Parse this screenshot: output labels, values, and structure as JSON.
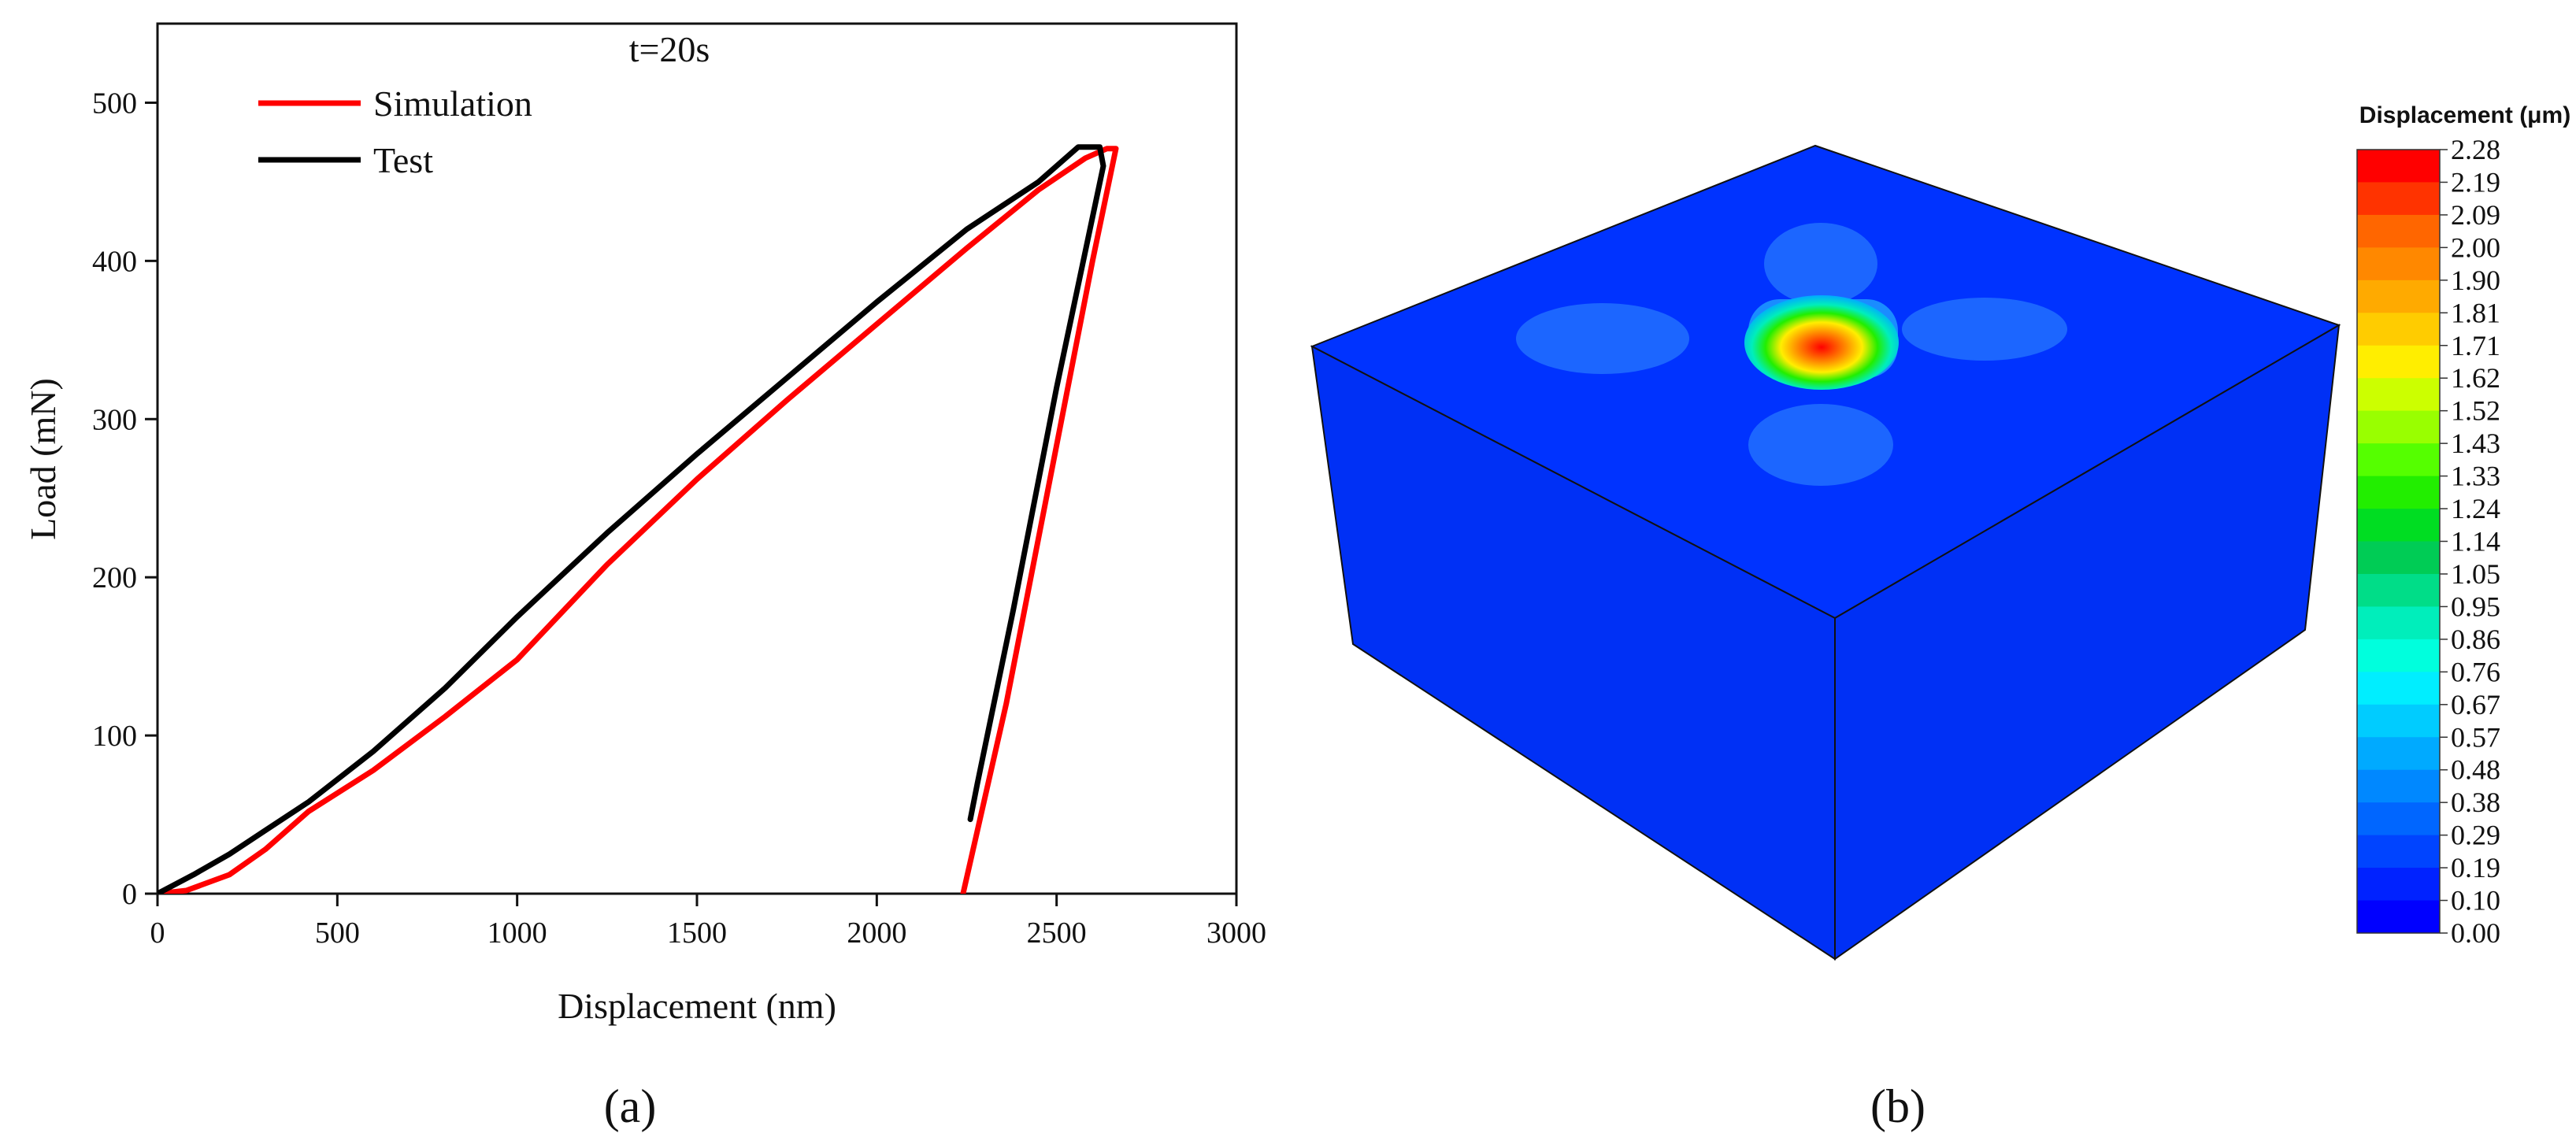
{
  "chart_data": [
    {
      "type": "line",
      "title": "t=20s",
      "xlabel": "Displacement (nm)",
      "ylabel": "Load (mN)",
      "xlim": [
        0,
        3000
      ],
      "ylim": [
        0,
        550
      ],
      "xticks": [
        0,
        500,
        1000,
        1500,
        2000,
        2500,
        3000
      ],
      "yticks": [
        0,
        100,
        200,
        300,
        400,
        500
      ],
      "grid": false,
      "legend_position": "top-left",
      "series": [
        {
          "name": "Simulation",
          "color": "#ff0000",
          "x": [
            0,
            80,
            200,
            300,
            420,
            600,
            800,
            1000,
            1250,
            1500,
            1750,
            2000,
            2250,
            2450,
            2580,
            2640,
            2665,
            2600,
            2480,
            2360,
            2240
          ],
          "y": [
            0,
            2,
            12,
            28,
            52,
            78,
            112,
            148,
            208,
            262,
            312,
            360,
            408,
            445,
            465,
            471,
            471,
            400,
            260,
            120,
            0
          ]
        },
        {
          "name": "Test",
          "color": "#000000",
          "x": [
            0,
            100,
            200,
            300,
            420,
            600,
            800,
            1000,
            1250,
            1500,
            1750,
            2000,
            2250,
            2450,
            2560,
            2620,
            2630,
            2500,
            2380,
            2280,
            2260
          ],
          "y": [
            0,
            12,
            25,
            40,
            58,
            90,
            130,
            175,
            228,
            278,
            326,
            374,
            420,
            450,
            472,
            472,
            460,
            320,
            180,
            70,
            47
          ]
        }
      ],
      "panel_label": "(a)"
    },
    {
      "type": "heatmap",
      "colorbar_title": "Displacement (μm)",
      "colorbar_levels": [
        "2.28",
        "2.19",
        "2.09",
        "2.00",
        "1.90",
        "1.81",
        "1.71",
        "1.62",
        "1.52",
        "1.43",
        "1.33",
        "1.24",
        "1.14",
        "1.05",
        "0.95",
        "0.86",
        "0.76",
        "0.67",
        "0.57",
        "0.48",
        "0.38",
        "0.29",
        "0.19",
        "0.10",
        "0.00"
      ],
      "colorbar_colors": [
        "#ff0000",
        "#ff3300",
        "#ff6600",
        "#ff8800",
        "#ffaa00",
        "#ffcc00",
        "#ffee00",
        "#ccff00",
        "#99ff00",
        "#55ff00",
        "#22ee00",
        "#00dd22",
        "#00cc55",
        "#00dd88",
        "#00eebb",
        "#00ffdd",
        "#00eeff",
        "#00ccff",
        "#00aaff",
        "#0088ff",
        "#0066ff",
        "#0044ff",
        "#0022ff",
        "#0000ff"
      ],
      "panel_label": "(b)"
    }
  ]
}
